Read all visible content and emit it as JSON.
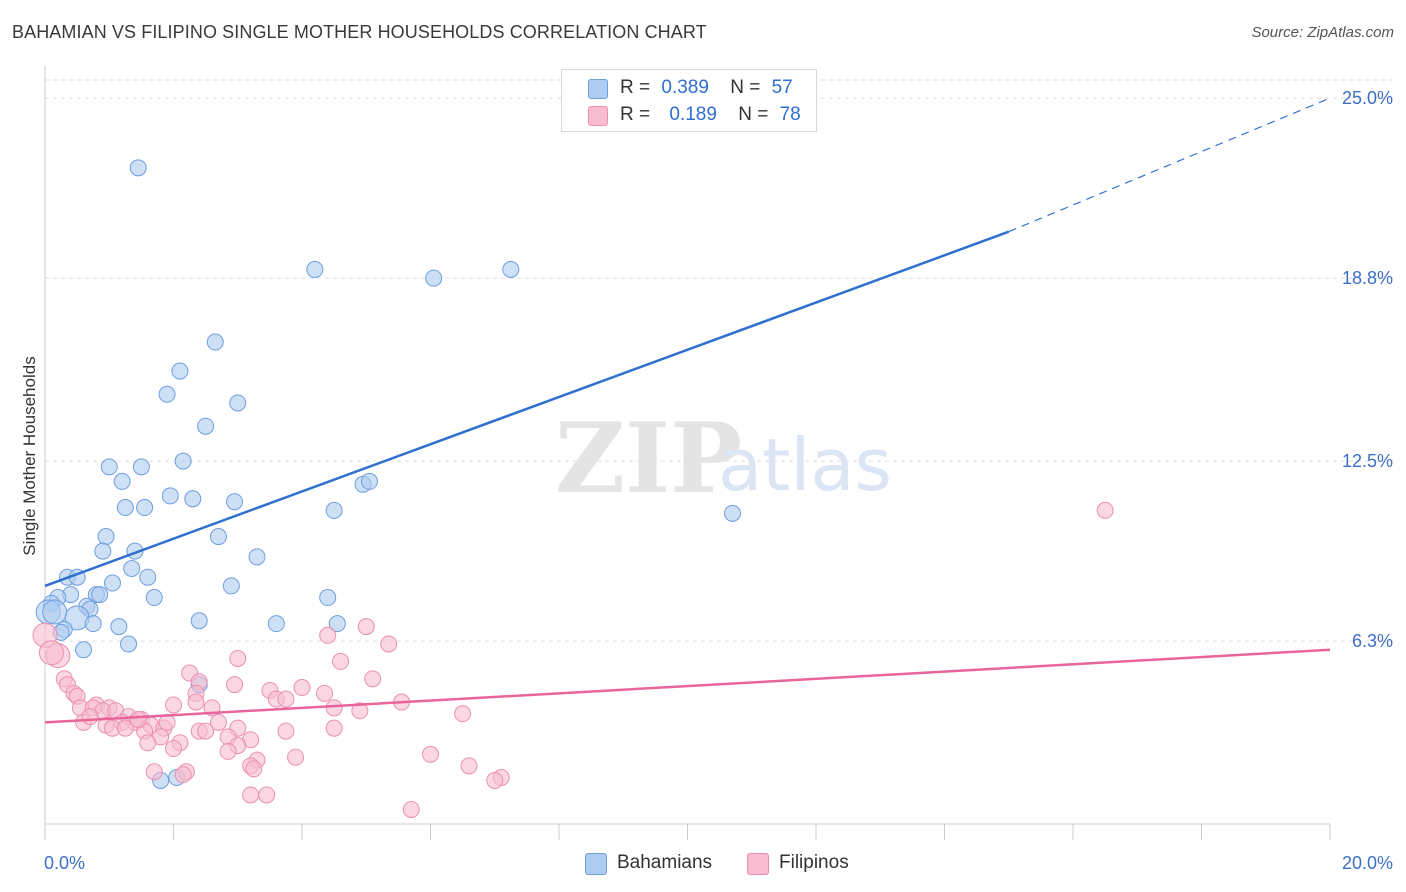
{
  "header": {
    "title": "BAHAMIAN VS FILIPINO SINGLE MOTHER HOUSEHOLDS CORRELATION CHART",
    "source": "Source: ZipAtlas.com"
  },
  "legend": {
    "rows": [
      {
        "r_label": "R =",
        "r_value": "0.389",
        "n_label": "N =",
        "n_value": "57"
      },
      {
        "r_label": "R =",
        "r_value": "0.189",
        "n_label": "N =",
        "n_value": "78"
      }
    ]
  },
  "bottom_legend": {
    "bahamians": "Bahamians",
    "filipinos": "Filipinos"
  },
  "colors": {
    "bahamians_fill": "#aecbf0",
    "bahamians_stroke": "#6d9ee0",
    "bahamians_line": "#2f6fd0",
    "filipinos_fill": "#f7bcd0",
    "filipinos_stroke": "#ec8fb0",
    "filipinos_line": "#e8659a",
    "grid": "#dddddd",
    "tick_label": "#3d6fc4"
  },
  "chart_data": {
    "type": "scatter",
    "title": "BAHAMIAN VS FILIPINO SINGLE MOTHER HOUSEHOLDS CORRELATION CHART",
    "xlabel": "",
    "ylabel": "Single Mother Households",
    "xlim": [
      0,
      20
    ],
    "ylim": [
      0,
      25.9
    ],
    "x_tick_labels": [
      "0.0%",
      "20.0%"
    ],
    "y_ticks": [
      6.3,
      12.5,
      18.8,
      25.0
    ],
    "y_tick_labels": [
      "6.3%",
      "12.5%",
      "18.8%",
      "25.0%"
    ],
    "watermark": "ZIPatlas",
    "series": [
      {
        "name": "Bahamians",
        "r": 0.389,
        "n": 57,
        "trend": {
          "x0": 0,
          "y0": 8.2,
          "x1": 15.0,
          "y1": 20.4,
          "dashed_to_x": 20,
          "dashed_to_y": 25.0
        },
        "points": [
          [
            1.45,
            22.6
          ],
          [
            4.2,
            19.1
          ],
          [
            6.05,
            18.8
          ],
          [
            7.25,
            19.1
          ],
          [
            2.65,
            16.6
          ],
          [
            2.1,
            15.6
          ],
          [
            1.9,
            14.8
          ],
          [
            3.0,
            14.5
          ],
          [
            2.5,
            13.7
          ],
          [
            1.0,
            12.3
          ],
          [
            1.5,
            12.3
          ],
          [
            2.15,
            12.5
          ],
          [
            1.2,
            11.8
          ],
          [
            4.95,
            11.7
          ],
          [
            5.05,
            11.8
          ],
          [
            1.95,
            11.3
          ],
          [
            2.3,
            11.2
          ],
          [
            2.95,
            11.1
          ],
          [
            1.25,
            10.9
          ],
          [
            1.55,
            10.9
          ],
          [
            4.5,
            10.8
          ],
          [
            10.7,
            10.7
          ],
          [
            0.95,
            9.9
          ],
          [
            2.7,
            9.9
          ],
          [
            0.9,
            9.4
          ],
          [
            1.4,
            9.4
          ],
          [
            3.3,
            9.2
          ],
          [
            1.35,
            8.8
          ],
          [
            0.35,
            8.5
          ],
          [
            0.5,
            8.5
          ],
          [
            1.6,
            8.5
          ],
          [
            1.05,
            8.3
          ],
          [
            2.9,
            8.2
          ],
          [
            0.8,
            7.9
          ],
          [
            0.85,
            7.9
          ],
          [
            0.4,
            7.9
          ],
          [
            0.2,
            7.8
          ],
          [
            1.7,
            7.8
          ],
          [
            4.4,
            7.8
          ],
          [
            0.1,
            7.6
          ],
          [
            0.65,
            7.5
          ],
          [
            0.7,
            7.4
          ],
          [
            0.05,
            7.3
          ],
          [
            0.15,
            7.3
          ],
          [
            0.5,
            7.1
          ],
          [
            2.4,
            7.0
          ],
          [
            0.75,
            6.9
          ],
          [
            1.15,
            6.8
          ],
          [
            3.6,
            6.9
          ],
          [
            4.55,
            6.9
          ],
          [
            0.3,
            6.7
          ],
          [
            0.25,
            6.6
          ],
          [
            1.3,
            6.2
          ],
          [
            0.6,
            6.0
          ],
          [
            2.4,
            4.8
          ],
          [
            1.8,
            1.5
          ],
          [
            2.05,
            1.6
          ]
        ]
      },
      {
        "name": "Filipinos",
        "r": 0.189,
        "n": 78,
        "trend": {
          "x0": 0,
          "y0": 3.5,
          "x1": 20,
          "y1": 6.0
        },
        "points": [
          [
            0.0,
            6.5
          ],
          [
            0.2,
            5.8
          ],
          [
            0.1,
            5.9
          ],
          [
            16.5,
            10.8
          ],
          [
            5.0,
            6.8
          ],
          [
            4.4,
            6.5
          ],
          [
            5.35,
            6.2
          ],
          [
            3.0,
            5.7
          ],
          [
            4.6,
            5.6
          ],
          [
            2.25,
            5.2
          ],
          [
            5.1,
            5.0
          ],
          [
            2.95,
            4.8
          ],
          [
            2.4,
            4.9
          ],
          [
            0.3,
            5.0
          ],
          [
            0.35,
            4.8
          ],
          [
            3.5,
            4.6
          ],
          [
            4.0,
            4.7
          ],
          [
            4.35,
            4.5
          ],
          [
            0.45,
            4.5
          ],
          [
            0.5,
            4.4
          ],
          [
            2.35,
            4.5
          ],
          [
            3.6,
            4.3
          ],
          [
            3.75,
            4.3
          ],
          [
            5.55,
            4.2
          ],
          [
            0.8,
            4.1
          ],
          [
            0.55,
            4.0
          ],
          [
            0.75,
            4.0
          ],
          [
            1.0,
            4.0
          ],
          [
            0.9,
            3.9
          ],
          [
            1.1,
            3.9
          ],
          [
            2.0,
            4.1
          ],
          [
            2.6,
            4.0
          ],
          [
            4.5,
            4.0
          ],
          [
            6.5,
            3.8
          ],
          [
            1.3,
            3.7
          ],
          [
            1.5,
            3.6
          ],
          [
            1.4,
            3.5
          ],
          [
            0.6,
            3.5
          ],
          [
            1.2,
            3.5
          ],
          [
            1.65,
            3.4
          ],
          [
            1.85,
            3.3
          ],
          [
            2.4,
            3.2
          ],
          [
            2.5,
            3.2
          ],
          [
            3.0,
            3.3
          ],
          [
            3.75,
            3.2
          ],
          [
            4.5,
            3.3
          ],
          [
            0.95,
            3.4
          ],
          [
            1.05,
            3.3
          ],
          [
            1.25,
            3.3
          ],
          [
            1.55,
            3.2
          ],
          [
            1.8,
            3.0
          ],
          [
            2.85,
            3.0
          ],
          [
            3.2,
            2.9
          ],
          [
            2.1,
            2.8
          ],
          [
            1.6,
            2.8
          ],
          [
            3.0,
            2.7
          ],
          [
            2.0,
            2.6
          ],
          [
            2.85,
            2.5
          ],
          [
            3.3,
            2.2
          ],
          [
            3.9,
            2.3
          ],
          [
            6.0,
            2.4
          ],
          [
            6.6,
            2.0
          ],
          [
            3.2,
            2.0
          ],
          [
            3.25,
            1.9
          ],
          [
            2.2,
            1.8
          ],
          [
            2.15,
            1.7
          ],
          [
            7.1,
            1.6
          ],
          [
            7.0,
            1.5
          ],
          [
            3.2,
            1.0
          ],
          [
            3.45,
            1.0
          ],
          [
            5.7,
            0.5
          ],
          [
            1.7,
            1.8
          ],
          [
            2.35,
            4.2
          ],
          [
            1.45,
            3.6
          ],
          [
            4.9,
            3.9
          ],
          [
            2.7,
            3.5
          ],
          [
            0.7,
            3.7
          ],
          [
            1.9,
            3.5
          ]
        ]
      }
    ]
  }
}
